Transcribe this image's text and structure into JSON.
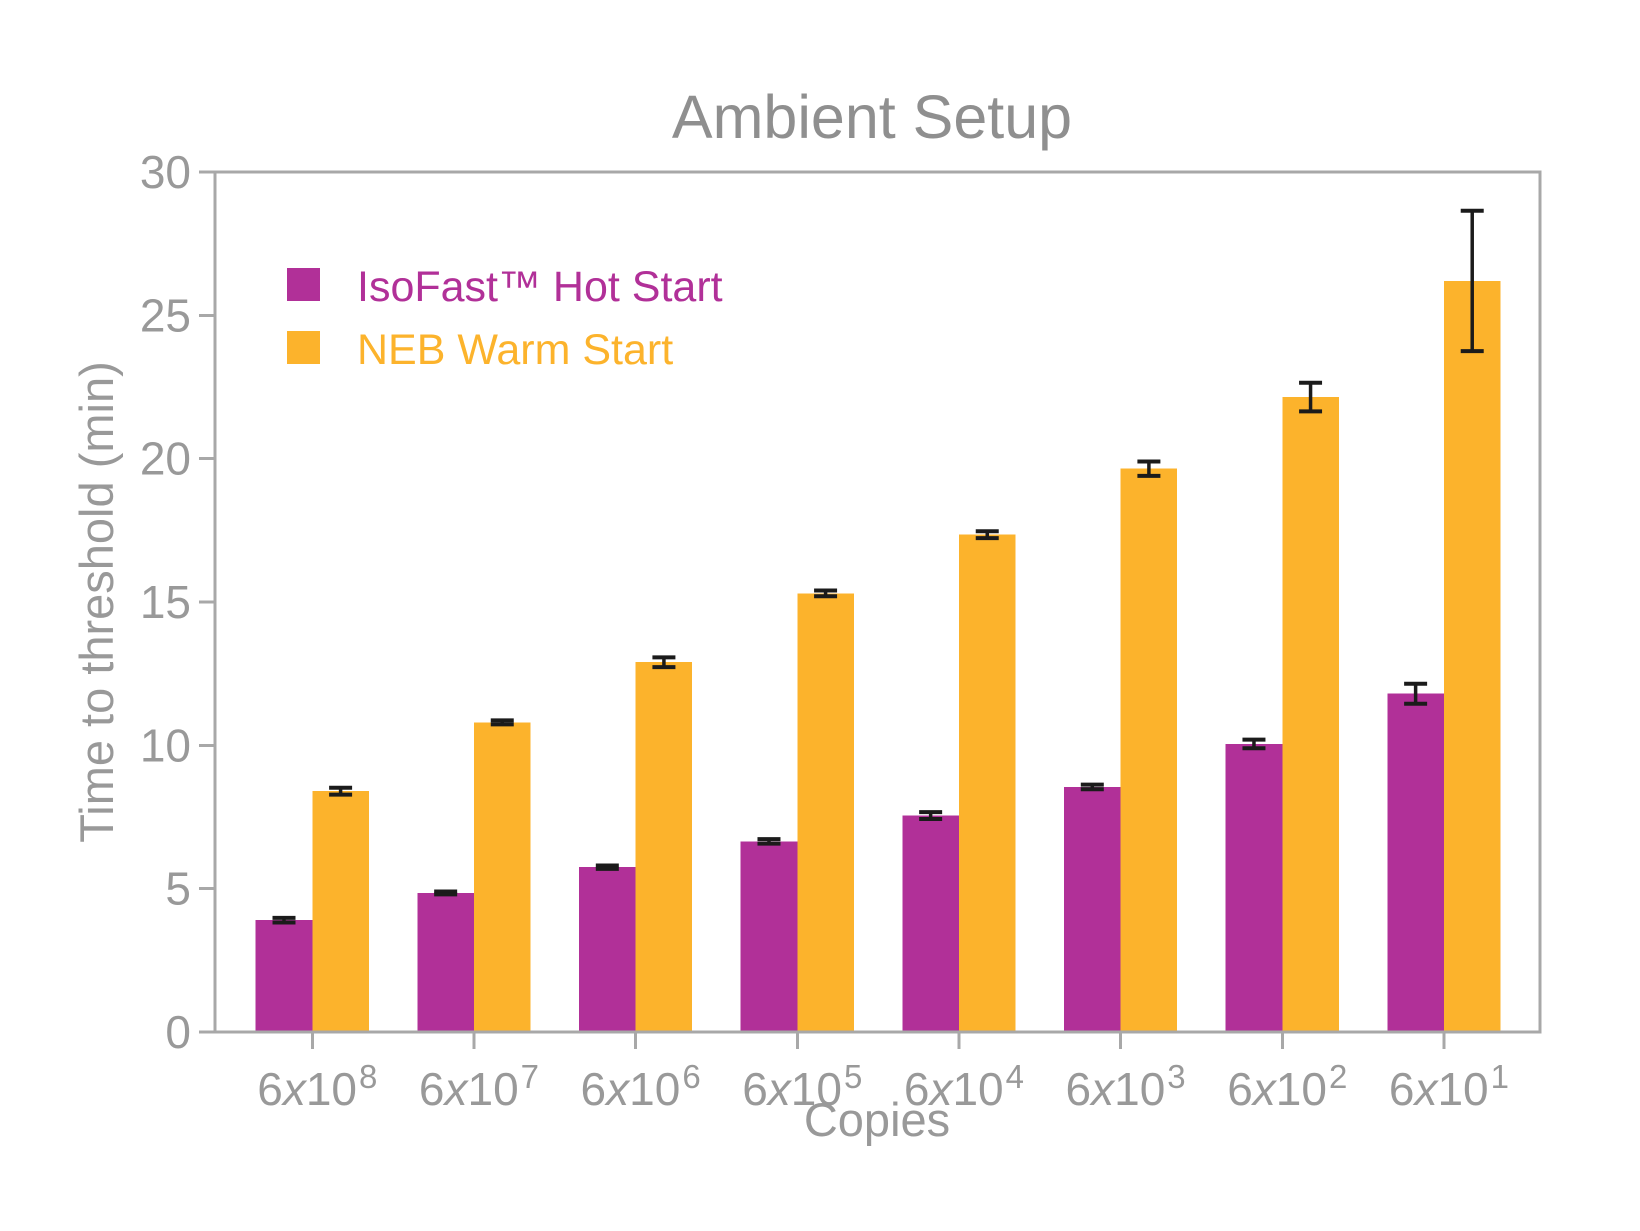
{
  "chart_data": {
    "type": "bar",
    "title": "Ambient Setup",
    "xlabel": "Copies",
    "ylabel": "Time to threshold (min)",
    "ylim": [
      0,
      30
    ],
    "yticks": [
      0,
      5,
      10,
      15,
      20,
      25,
      30
    ],
    "grid": false,
    "legend_position": "upper-left-inside",
    "categories": [
      {
        "mantissa": "6x10",
        "exponent": "8"
      },
      {
        "mantissa": "6x10",
        "exponent": "7"
      },
      {
        "mantissa": "6x10",
        "exponent": "6"
      },
      {
        "mantissa": "6x10",
        "exponent": "5"
      },
      {
        "mantissa": "6x10",
        "exponent": "4"
      },
      {
        "mantissa": "6x10",
        "exponent": "3"
      },
      {
        "mantissa": "6x10",
        "exponent": "2"
      },
      {
        "mantissa": "6x10",
        "exponent": "1"
      }
    ],
    "series": [
      {
        "name": "IsoFast™ Hot Start",
        "slug": "isofast-hot-start",
        "color": "#b13098",
        "values": [
          3.9,
          4.85,
          5.75,
          6.65,
          7.55,
          8.55,
          10.05,
          11.8
        ],
        "errors": [
          0.08,
          0.05,
          0.06,
          0.08,
          0.12,
          0.08,
          0.15,
          0.35
        ]
      },
      {
        "name": "NEB Warm Start",
        "slug": "neb-warm-start",
        "color": "#fcb32c",
        "values": [
          8.4,
          10.8,
          12.9,
          15.3,
          17.35,
          19.65,
          22.15,
          26.2
        ],
        "errors": [
          0.12,
          0.07,
          0.17,
          0.1,
          0.12,
          0.25,
          0.5,
          2.45
        ]
      }
    ],
    "colors": {
      "axis": "#a8a8a8",
      "tick_labels": "#999999",
      "title": "#8f8f8f",
      "error_bars": "#1b1b1b",
      "background": "#ffffff"
    }
  }
}
